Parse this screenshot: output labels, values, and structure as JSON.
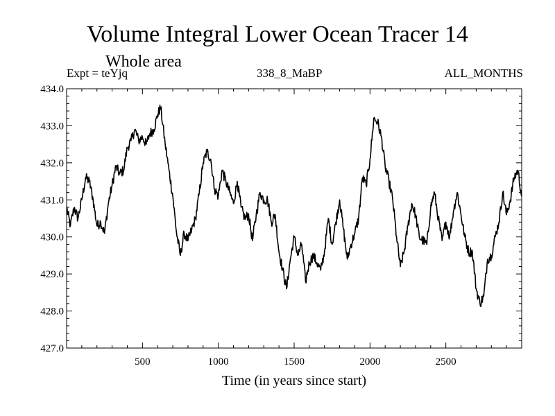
{
  "chart_data": {
    "type": "line",
    "title": "Volume Integral Lower Ocean Tracer 14",
    "subtitle": "Whole area",
    "experiment": "Expt = teYjq",
    "period": "338_8_MaBP",
    "months": "ALL_MONTHS",
    "xlabel": "Time (in years since start)",
    "ylabel": "",
    "xlim": [
      0,
      3000
    ],
    "ylim": [
      427.0,
      434.0
    ],
    "xticks": [
      500,
      1000,
      1500,
      2000,
      2500
    ],
    "xtick_labels": [
      "500",
      "1000",
      "1500",
      "2000",
      "2500"
    ],
    "yticks": [
      427.0,
      428.0,
      429.0,
      430.0,
      431.0,
      432.0,
      433.0,
      434.0
    ],
    "ytick_labels": [
      "427.0",
      "428.0",
      "429.0",
      "430.0",
      "431.0",
      "432.0",
      "433.0",
      "434.0"
    ],
    "grid": false,
    "series": [
      {
        "name": "Tracer 14",
        "x": [
          0,
          25,
          50,
          75,
          100,
          125,
          150,
          175,
          200,
          225,
          250,
          275,
          300,
          325,
          350,
          375,
          400,
          425,
          450,
          475,
          500,
          525,
          550,
          575,
          600,
          620,
          650,
          675,
          700,
          725,
          750,
          775,
          800,
          825,
          850,
          875,
          900,
          925,
          950,
          975,
          1000,
          1025,
          1050,
          1075,
          1100,
          1125,
          1150,
          1175,
          1200,
          1225,
          1250,
          1275,
          1300,
          1325,
          1350,
          1375,
          1400,
          1425,
          1450,
          1475,
          1500,
          1525,
          1550,
          1575,
          1600,
          1625,
          1650,
          1675,
          1700,
          1725,
          1750,
          1775,
          1800,
          1825,
          1850,
          1875,
          1900,
          1925,
          1950,
          1975,
          2000,
          2025,
          2050,
          2075,
          2100,
          2125,
          2150,
          2175,
          2200,
          2225,
          2250,
          2275,
          2300,
          2325,
          2350,
          2375,
          2400,
          2425,
          2450,
          2475,
          2500,
          2525,
          2550,
          2575,
          2600,
          2625,
          2650,
          2675,
          2700,
          2725,
          2750,
          2775,
          2800,
          2825,
          2850,
          2875,
          2900,
          2925,
          2950,
          2975,
          3000
        ],
        "values": [
          430.8,
          430.3,
          430.8,
          430.5,
          431.0,
          431.6,
          431.5,
          431.0,
          430.3,
          430.4,
          430.1,
          430.9,
          431.4,
          431.9,
          431.7,
          431.8,
          432.4,
          432.6,
          432.9,
          432.6,
          432.7,
          432.5,
          432.8,
          432.9,
          433.3,
          433.5,
          432.5,
          431.8,
          431.1,
          430.1,
          429.5,
          430.1,
          429.9,
          430.2,
          430.5,
          431.2,
          432.0,
          432.3,
          432.1,
          431.3,
          431.1,
          431.8,
          431.5,
          431.2,
          430.9,
          431.5,
          430.8,
          430.5,
          430.6,
          429.9,
          430.6,
          431.2,
          431.0,
          431.0,
          430.4,
          430.6,
          429.6,
          429.1,
          428.6,
          429.4,
          430.0,
          429.5,
          429.8,
          428.8,
          429.3,
          429.5,
          429.3,
          429.1,
          429.6,
          430.5,
          429.8,
          430.4,
          431.0,
          430.2,
          429.4,
          429.8,
          430.1,
          430.5,
          431.6,
          431.4,
          432.1,
          433.2,
          433.1,
          432.7,
          431.9,
          431.5,
          431.0,
          430.0,
          429.2,
          429.6,
          430.3,
          430.9,
          430.6,
          430.0,
          429.9,
          429.8,
          430.8,
          431.2,
          430.5,
          429.9,
          430.4,
          430.0,
          430.7,
          431.2,
          430.6,
          430.0,
          429.6,
          429.6,
          428.6,
          428.2,
          428.4,
          429.4,
          429.5,
          430.0,
          430.4,
          431.2,
          430.6,
          431.0,
          431.6,
          431.8,
          431.1
        ]
      }
    ]
  }
}
